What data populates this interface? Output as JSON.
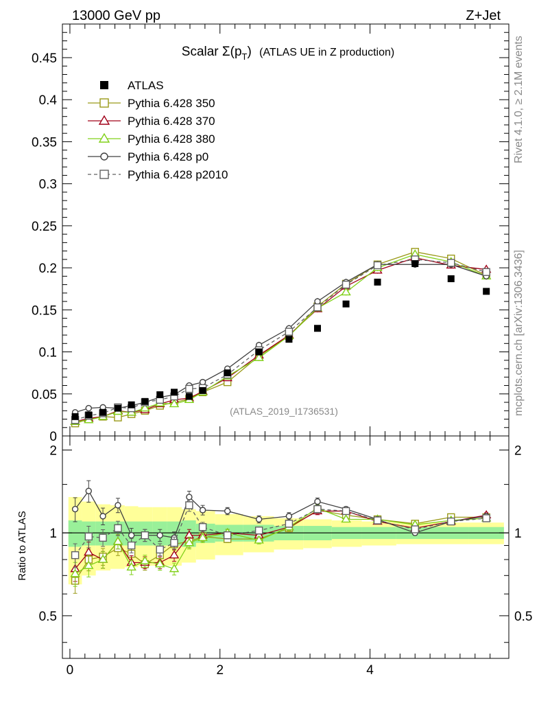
{
  "header": {
    "left_label": "13000 GeV pp",
    "right_label": "Z+Jet"
  },
  "side_labels": {
    "rivet": "Rivet 4.1.0, ≥ 2.1M events",
    "mcplots": "mcplots.cern.ch [arXiv:1306.3436]"
  },
  "chart_data": {
    "type": "line",
    "title": "Scalar Σ(p",
    "title_sub": "T",
    "title_close": ")",
    "title_suffix": "(ATLAS UE in Z production)",
    "analysis_label": "(ATLAS_2019_I1736531)",
    "xlabel": "",
    "ylabel": "",
    "ratio_ylabel": "Ratio to ATLAS",
    "xlim": [
      -0.1,
      5.85
    ],
    "ylim": [
      0,
      0.49
    ],
    "ratio_ylim": [
      0.35,
      2.25
    ],
    "x_ticks": [
      "0",
      "2",
      "4"
    ],
    "y_ticks": [
      "0",
      "0.05",
      "0.1",
      "0.15",
      "0.2",
      "0.25",
      "0.3",
      "0.35",
      "0.4",
      "0.45"
    ],
    "ratio_ticks": [
      "0.5",
      "1",
      "2"
    ],
    "x": [
      0.07,
      0.25,
      0.44,
      0.64,
      0.82,
      1.0,
      1.2,
      1.39,
      1.59,
      1.77,
      2.1,
      2.52,
      2.92,
      3.3,
      3.68,
      4.1,
      4.6,
      5.08,
      5.55
    ],
    "atlas": [
      0.023,
      0.025,
      0.028,
      0.033,
      0.037,
      0.041,
      0.049,
      0.052,
      0.047,
      0.054,
      0.075,
      0.1,
      0.115,
      0.128,
      0.157,
      0.183,
      0.205,
      0.187,
      0.172
    ],
    "band_inner": [
      0.11,
      0.1,
      0.1,
      0.1,
      0.1,
      0.1,
      0.1,
      0.1,
      0.11,
      0.08,
      0.07,
      0.07,
      0.06,
      0.06,
      0.05,
      0.05,
      0.05,
      0.05,
      0.05
    ],
    "band_outer": [
      0.35,
      0.3,
      0.27,
      0.26,
      0.25,
      0.24,
      0.24,
      0.24,
      0.22,
      0.2,
      0.17,
      0.15,
      0.13,
      0.12,
      0.11,
      0.1,
      0.09,
      0.09,
      0.09
    ],
    "series": [
      {
        "name": "Pythia 6.428 350",
        "color": "#9a9a18",
        "marker": "square-open",
        "dash": "",
        "values": [
          0.015,
          0.02,
          0.023,
          0.022,
          0.026,
          0.03,
          0.036,
          0.04,
          0.044,
          0.052,
          0.064,
          0.095,
          0.119,
          0.154,
          0.181,
          0.204,
          0.219,
          0.211,
          0.191
        ],
        "err": [
          0.003,
          0.003,
          0.003,
          0.003,
          0.003,
          0.003,
          0.003,
          0.003,
          0.003,
          0.003,
          0.003,
          0.004,
          0.004,
          0.004,
          0.004,
          0.004,
          0.004,
          0.004,
          0.004
        ]
      },
      {
        "name": "Pythia 6.428 370",
        "color": "#a00018",
        "marker": "triangle-open",
        "dash": "",
        "values": [
          0.017,
          0.021,
          0.023,
          0.03,
          0.028,
          0.031,
          0.038,
          0.043,
          0.045,
          0.053,
          0.069,
          0.096,
          0.12,
          0.151,
          0.178,
          0.197,
          0.212,
          0.203,
          0.198
        ],
        "err": [
          0.003,
          0.003,
          0.003,
          0.003,
          0.003,
          0.003,
          0.003,
          0.003,
          0.003,
          0.003,
          0.003,
          0.004,
          0.004,
          0.004,
          0.004,
          0.004,
          0.004,
          0.004,
          0.004
        ]
      },
      {
        "name": "Pythia 6.428 380",
        "color": "#80d018",
        "marker": "triangle-open",
        "dash": "",
        "values": [
          0.017,
          0.019,
          0.023,
          0.029,
          0.028,
          0.033,
          0.039,
          0.038,
          0.043,
          0.052,
          0.071,
          0.093,
          0.119,
          0.152,
          0.171,
          0.2,
          0.216,
          0.207,
          0.19
        ],
        "err": [
          0.003,
          0.003,
          0.003,
          0.003,
          0.003,
          0.003,
          0.003,
          0.003,
          0.003,
          0.003,
          0.003,
          0.004,
          0.004,
          0.004,
          0.004,
          0.004,
          0.004,
          0.004,
          0.004
        ]
      },
      {
        "name": "Pythia 6.428 p0",
        "color": "#404040",
        "marker": "circle-open",
        "dash": "",
        "values": [
          0.028,
          0.033,
          0.034,
          0.033,
          0.036,
          0.04,
          0.046,
          0.049,
          0.06,
          0.064,
          0.08,
          0.108,
          0.128,
          0.16,
          0.183,
          0.204,
          0.204,
          0.204,
          0.19
        ],
        "err": [
          0.003,
          0.003,
          0.003,
          0.003,
          0.003,
          0.003,
          0.003,
          0.003,
          0.003,
          0.003,
          0.003,
          0.004,
          0.004,
          0.004,
          0.004,
          0.004,
          0.004,
          0.004,
          0.004
        ]
      },
      {
        "name": "Pythia 6.428 p2010",
        "color": "#606060",
        "marker": "square-open",
        "dash": "5,4",
        "values": [
          0.019,
          0.024,
          0.027,
          0.034,
          0.033,
          0.04,
          0.043,
          0.047,
          0.056,
          0.057,
          0.073,
          0.102,
          0.124,
          0.153,
          0.18,
          0.203,
          0.21,
          0.206,
          0.195
        ],
        "err": [
          0.003,
          0.003,
          0.003,
          0.003,
          0.003,
          0.003,
          0.003,
          0.003,
          0.003,
          0.003,
          0.003,
          0.004,
          0.004,
          0.004,
          0.004,
          0.004,
          0.004,
          0.004,
          0.004
        ]
      }
    ],
    "ratios": [
      [
        0.67,
        0.8,
        0.82,
        0.88,
        0.84,
        0.77,
        0.83,
        0.91,
        0.93,
        0.97,
        0.95,
        0.95,
        1.04,
        1.21,
        1.16,
        1.12,
        1.08,
        1.14,
        1.14
      ],
      [
        0.74,
        0.85,
        0.8,
        0.93,
        0.78,
        0.78,
        0.78,
        0.83,
        0.98,
        0.98,
        1.0,
        0.98,
        1.05,
        1.2,
        1.2,
        1.1,
        1.04,
        1.1,
        1.16
      ],
      [
        0.71,
        0.76,
        0.8,
        0.93,
        0.75,
        0.79,
        0.77,
        0.74,
        0.92,
        0.96,
        1.0,
        0.94,
        1.05,
        1.23,
        1.12,
        1.12,
        1.07,
        1.11,
        1.13
      ],
      [
        1.22,
        1.42,
        1.15,
        1.26,
        0.98,
        0.98,
        0.98,
        0.96,
        1.35,
        1.21,
        1.2,
        1.12,
        1.15,
        1.3,
        1.22,
        1.12,
        1.0,
        1.1,
        1.15
      ],
      [
        0.83,
        0.97,
        0.96,
        1.04,
        0.9,
        0.98,
        0.87,
        0.92,
        1.26,
        1.05,
        0.98,
        1.02,
        1.08,
        1.22,
        1.2,
        1.11,
        1.03,
        1.1,
        1.13
      ]
    ],
    "ratio_err": [
      0.1,
      0.09,
      0.07,
      0.06,
      0.06,
      0.05,
      0.05,
      0.05,
      0.05,
      0.04,
      0.03,
      0.03,
      0.03,
      0.03,
      0.02,
      0.02,
      0.02,
      0.02,
      0.02
    ],
    "legend": {
      "data_label": "ATLAS",
      "placement": "top-left"
    }
  }
}
